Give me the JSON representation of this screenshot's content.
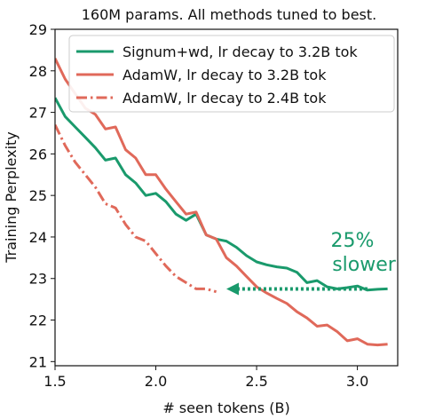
{
  "chart_data": {
    "type": "line",
    "title": "160M params. All methods tuned to best.",
    "xlabel": "# seen tokens (B)",
    "ylabel": "Training Perplexity",
    "xlim": [
      1.5,
      3.2
    ],
    "ylim": [
      20.9,
      29.0
    ],
    "xticks": [
      1.5,
      2.0,
      2.5,
      3.0
    ],
    "xtick_labels": [
      "1.5",
      "2.0",
      "2.5",
      "3.0"
    ],
    "yticks": [
      21,
      22,
      23,
      24,
      25,
      26,
      27,
      28,
      29
    ],
    "ytick_labels": [
      "21",
      "22",
      "23",
      "24",
      "25",
      "26",
      "27",
      "28",
      "29"
    ],
    "grid": false,
    "legend_position": "top-right",
    "series": [
      {
        "name": "Signum+wd, lr decay to 3.2B tok",
        "color": "#1a9a6c",
        "style": "solid",
        "x": [
          1.5,
          1.55,
          1.6,
          1.65,
          1.7,
          1.75,
          1.8,
          1.85,
          1.9,
          1.95,
          2.0,
          2.05,
          2.1,
          2.15,
          2.2,
          2.25,
          2.3,
          2.35,
          2.4,
          2.45,
          2.5,
          2.55,
          2.6,
          2.65,
          2.7,
          2.75,
          2.8,
          2.85,
          2.9,
          2.95,
          3.0,
          3.05,
          3.1,
          3.15
        ],
        "y": [
          27.35,
          26.9,
          26.65,
          26.4,
          26.15,
          25.85,
          25.9,
          25.5,
          25.3,
          25.0,
          25.05,
          24.85,
          24.55,
          24.4,
          24.55,
          24.05,
          23.95,
          23.9,
          23.75,
          23.55,
          23.4,
          23.33,
          23.28,
          23.25,
          23.15,
          22.9,
          22.95,
          22.8,
          22.75,
          22.78,
          22.82,
          22.72,
          22.74,
          22.75
        ]
      },
      {
        "name": "AdamW, lr decay to 3.2B tok",
        "color": "#e0695a",
        "style": "solid",
        "x": [
          1.5,
          1.55,
          1.6,
          1.65,
          1.7,
          1.75,
          1.8,
          1.85,
          1.9,
          1.95,
          2.0,
          2.05,
          2.1,
          2.15,
          2.2,
          2.25,
          2.3,
          2.35,
          2.4,
          2.45,
          2.5,
          2.55,
          2.6,
          2.65,
          2.7,
          2.75,
          2.8,
          2.85,
          2.9,
          2.95,
          3.0,
          3.05,
          3.1,
          3.15
        ],
        "y": [
          28.3,
          27.8,
          27.45,
          27.1,
          26.95,
          26.6,
          26.65,
          26.1,
          25.9,
          25.5,
          25.5,
          25.15,
          24.85,
          24.55,
          24.6,
          24.05,
          23.95,
          23.5,
          23.3,
          23.05,
          22.8,
          22.65,
          22.52,
          22.4,
          22.2,
          22.05,
          21.85,
          21.88,
          21.72,
          21.5,
          21.55,
          21.42,
          21.4,
          21.42
        ]
      },
      {
        "name": "AdamW, lr decay to 2.4B tok",
        "color": "#e0695a",
        "style": "dashdot",
        "x": [
          1.5,
          1.55,
          1.6,
          1.65,
          1.7,
          1.75,
          1.8,
          1.85,
          1.9,
          1.95,
          2.0,
          2.05,
          2.1,
          2.15,
          2.2,
          2.25,
          2.3
        ],
        "y": [
          26.7,
          26.2,
          25.8,
          25.5,
          25.2,
          24.8,
          24.7,
          24.3,
          24.0,
          23.9,
          23.6,
          23.3,
          23.05,
          22.9,
          22.75,
          22.75,
          22.68
        ]
      }
    ],
    "annotation": {
      "text_line1": "25%",
      "text_line2": "slower",
      "color": "#1a9a6c",
      "arrow_from_x": 3.05,
      "arrow_to_x": 2.35,
      "arrow_y": 22.75
    }
  }
}
